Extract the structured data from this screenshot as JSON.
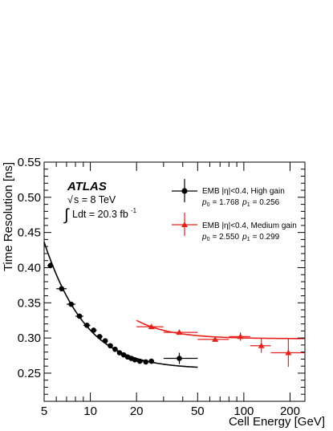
{
  "chart_data": {
    "type": "scatter",
    "x_scale": "log",
    "xlim": [
      5,
      250
    ],
    "ylim": [
      0.21,
      0.55
    ],
    "xticks": [
      5,
      10,
      20,
      50,
      100,
      200
    ],
    "xtick_labels": [
      "5",
      "10",
      "20",
      "50",
      "100",
      "200"
    ],
    "yticks": [
      0.25,
      0.3,
      0.35,
      0.4,
      0.45,
      0.5,
      0.55
    ],
    "ytick_labels": [
      "0.25",
      "0.30",
      "0.35",
      "0.40",
      "0.45",
      "0.50",
      "0.55"
    ],
    "xlabel": "Cell Energy [GeV]",
    "ylabel": "Time Resolution [ns]",
    "legend_position": "top-right",
    "annotations": {
      "experiment": "ATLAS",
      "sqrt_s_prefix": "√",
      "energy": "s = 8 TeV",
      "lumi_integral": "∫",
      "lumi": "Ldt = 20.3 fb",
      "lumi_exp": "-1"
    },
    "series": [
      {
        "name": "EMB |η|<0.4, High gain",
        "p_text": "p",
        "p0_sub": "0",
        "p0_value": "= 1.768",
        "p1_sub": "1",
        "p1_value": "= 0.256",
        "p0": 1.768,
        "p1": 0.256,
        "color": "#000000",
        "marker": "circle",
        "fit_range": [
          5,
          50
        ],
        "points": [
          {
            "x": 5.5,
            "y": 0.403,
            "ex": [
              5.25,
              5.75
            ],
            "ey": 0.004
          },
          {
            "x": 6.5,
            "y": 0.37,
            "ex": [
              6.0,
              7.0
            ],
            "ey": 0.003
          },
          {
            "x": 7.5,
            "y": 0.348,
            "ex": [
              7.0,
              8.0
            ],
            "ey": 0.003
          },
          {
            "x": 8.5,
            "y": 0.331,
            "ex": [
              8.0,
              9.0
            ],
            "ey": 0.003
          },
          {
            "x": 9.5,
            "y": 0.318,
            "ex": [
              9.0,
              10.0
            ],
            "ey": 0.002
          },
          {
            "x": 10.5,
            "y": 0.311,
            "ex": [
              10.0,
              11.0
            ],
            "ey": 0.002
          },
          {
            "x": 11.5,
            "y": 0.302,
            "ex": [
              11.0,
              12.0
            ],
            "ey": 0.002
          },
          {
            "x": 12.5,
            "y": 0.296,
            "ex": [
              12.0,
              13.0
            ],
            "ey": 0.002
          },
          {
            "x": 13.5,
            "y": 0.289,
            "ex": [
              13.0,
              14.0
            ],
            "ey": 0.002
          },
          {
            "x": 14.5,
            "y": 0.284,
            "ex": [
              14.0,
              15.0
            ],
            "ey": 0.002
          },
          {
            "x": 15.5,
            "y": 0.279,
            "ex": [
              15.0,
              16.0
            ],
            "ey": 0.002
          },
          {
            "x": 16.5,
            "y": 0.276,
            "ex": [
              16.0,
              17.0
            ],
            "ey": 0.002
          },
          {
            "x": 17.5,
            "y": 0.273,
            "ex": [
              17.0,
              18.0
            ],
            "ey": 0.002
          },
          {
            "x": 18.5,
            "y": 0.271,
            "ex": [
              18.0,
              19.0
            ],
            "ey": 0.002
          },
          {
            "x": 19.5,
            "y": 0.269,
            "ex": [
              19.0,
              20.0
            ],
            "ey": 0.002
          },
          {
            "x": 21,
            "y": 0.267,
            "ex": [
              20.0,
              22.0
            ],
            "ey": 0.002
          },
          {
            "x": 23,
            "y": 0.266,
            "ex": [
              22.0,
              24.0
            ],
            "ey": 0.002
          },
          {
            "x": 25,
            "y": 0.267,
            "ex": [
              24.0,
              26.0
            ],
            "ey": 0.002
          },
          {
            "x": 38,
            "y": 0.271,
            "ex": [
              30.0,
              50.0
            ],
            "ey": 0.008
          }
        ]
      },
      {
        "name": "EMB |η|<0.4, Medium gain",
        "p_text": "p",
        "p0_sub": "0",
        "p0_value": "= 2.550",
        "p1_sub": "1",
        "p1_value": "= 0.299",
        "p0": 2.55,
        "p1": 0.299,
        "color": "#e8201c",
        "marker": "triangle",
        "fit_range": [
          20,
          250
        ],
        "points": [
          {
            "x": 25,
            "y": 0.316,
            "ex": [
              20.0,
              30.0
            ],
            "ey": 0.002
          },
          {
            "x": 38,
            "y": 0.308,
            "ex": [
              30.0,
              50.0
            ],
            "ey": 0.003
          },
          {
            "x": 65,
            "y": 0.298,
            "ex": [
              50.0,
              80.0
            ],
            "ey": 0.003
          },
          {
            "x": 95,
            "y": 0.302,
            "ex": [
              80.0,
              110.0
            ],
            "ey": 0.006
          },
          {
            "x": 130,
            "y": 0.289,
            "ex": [
              110.0,
              150.0
            ],
            "ey": 0.01
          },
          {
            "x": 195,
            "y": 0.279,
            "ex": [
              150.0,
              250.0
            ],
            "ey": 0.02
          }
        ]
      }
    ]
  }
}
